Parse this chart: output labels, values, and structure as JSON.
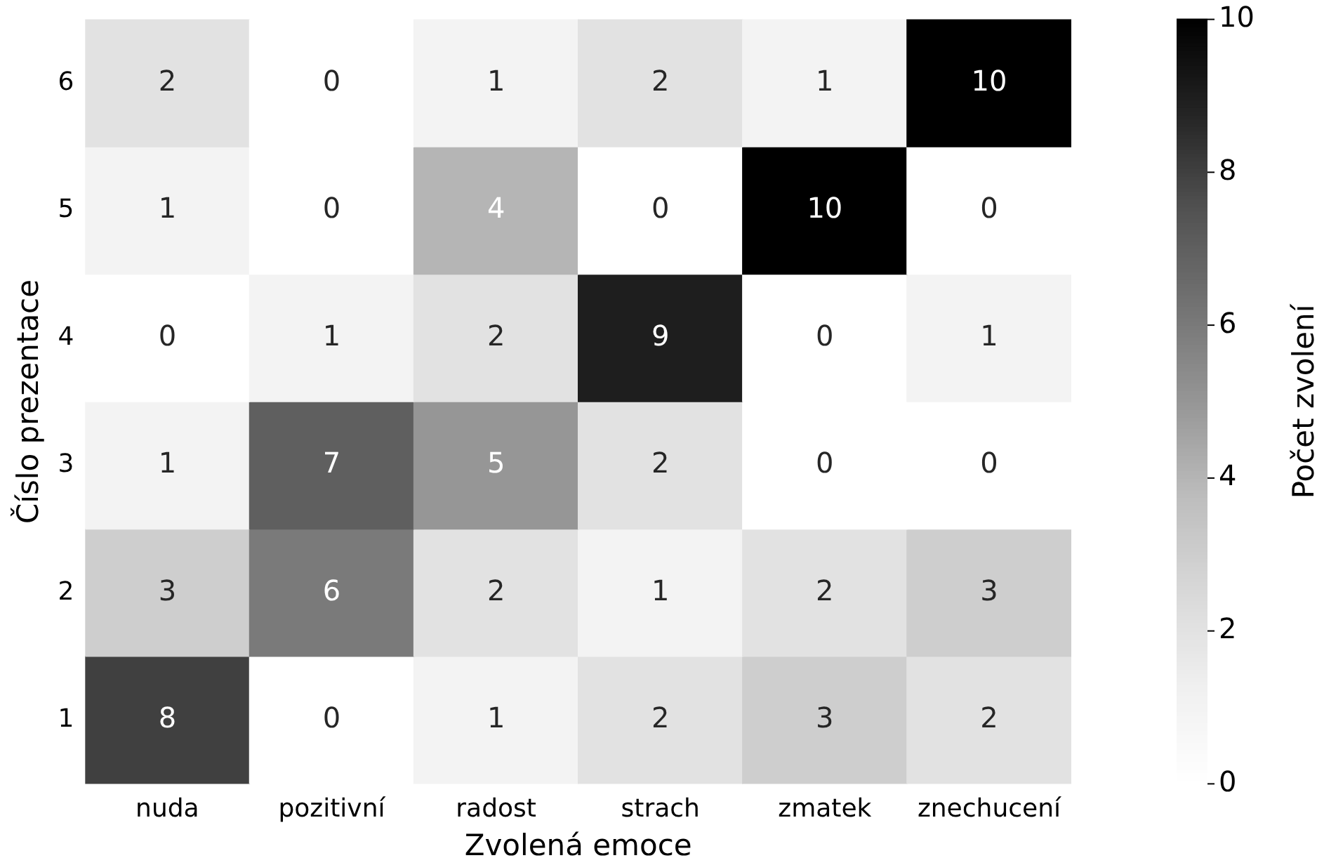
{
  "chart_data": {
    "type": "heatmap",
    "xlabel": "Zvolená emoce",
    "ylabel": "Číslo prezentace",
    "clabel": "Počet zvolení",
    "categories": [
      "nuda",
      "pozitivní",
      "radost",
      "strach",
      "zmatek",
      "znechucení"
    ],
    "y_categories": [
      "6",
      "5",
      "4",
      "3",
      "2",
      "1"
    ],
    "cells": [
      [
        2,
        0,
        1,
        2,
        1,
        10
      ],
      [
        1,
        0,
        4,
        0,
        10,
        0
      ],
      [
        0,
        1,
        2,
        9,
        0,
        1
      ],
      [
        1,
        7,
        5,
        2,
        0,
        0
      ],
      [
        3,
        6,
        2,
        1,
        2,
        3
      ],
      [
        8,
        0,
        1,
        2,
        3,
        2
      ]
    ],
    "clim": [
      0,
      10
    ],
    "cticks": [
      0,
      2,
      4,
      6,
      8,
      10
    ],
    "data_labels": true
  }
}
